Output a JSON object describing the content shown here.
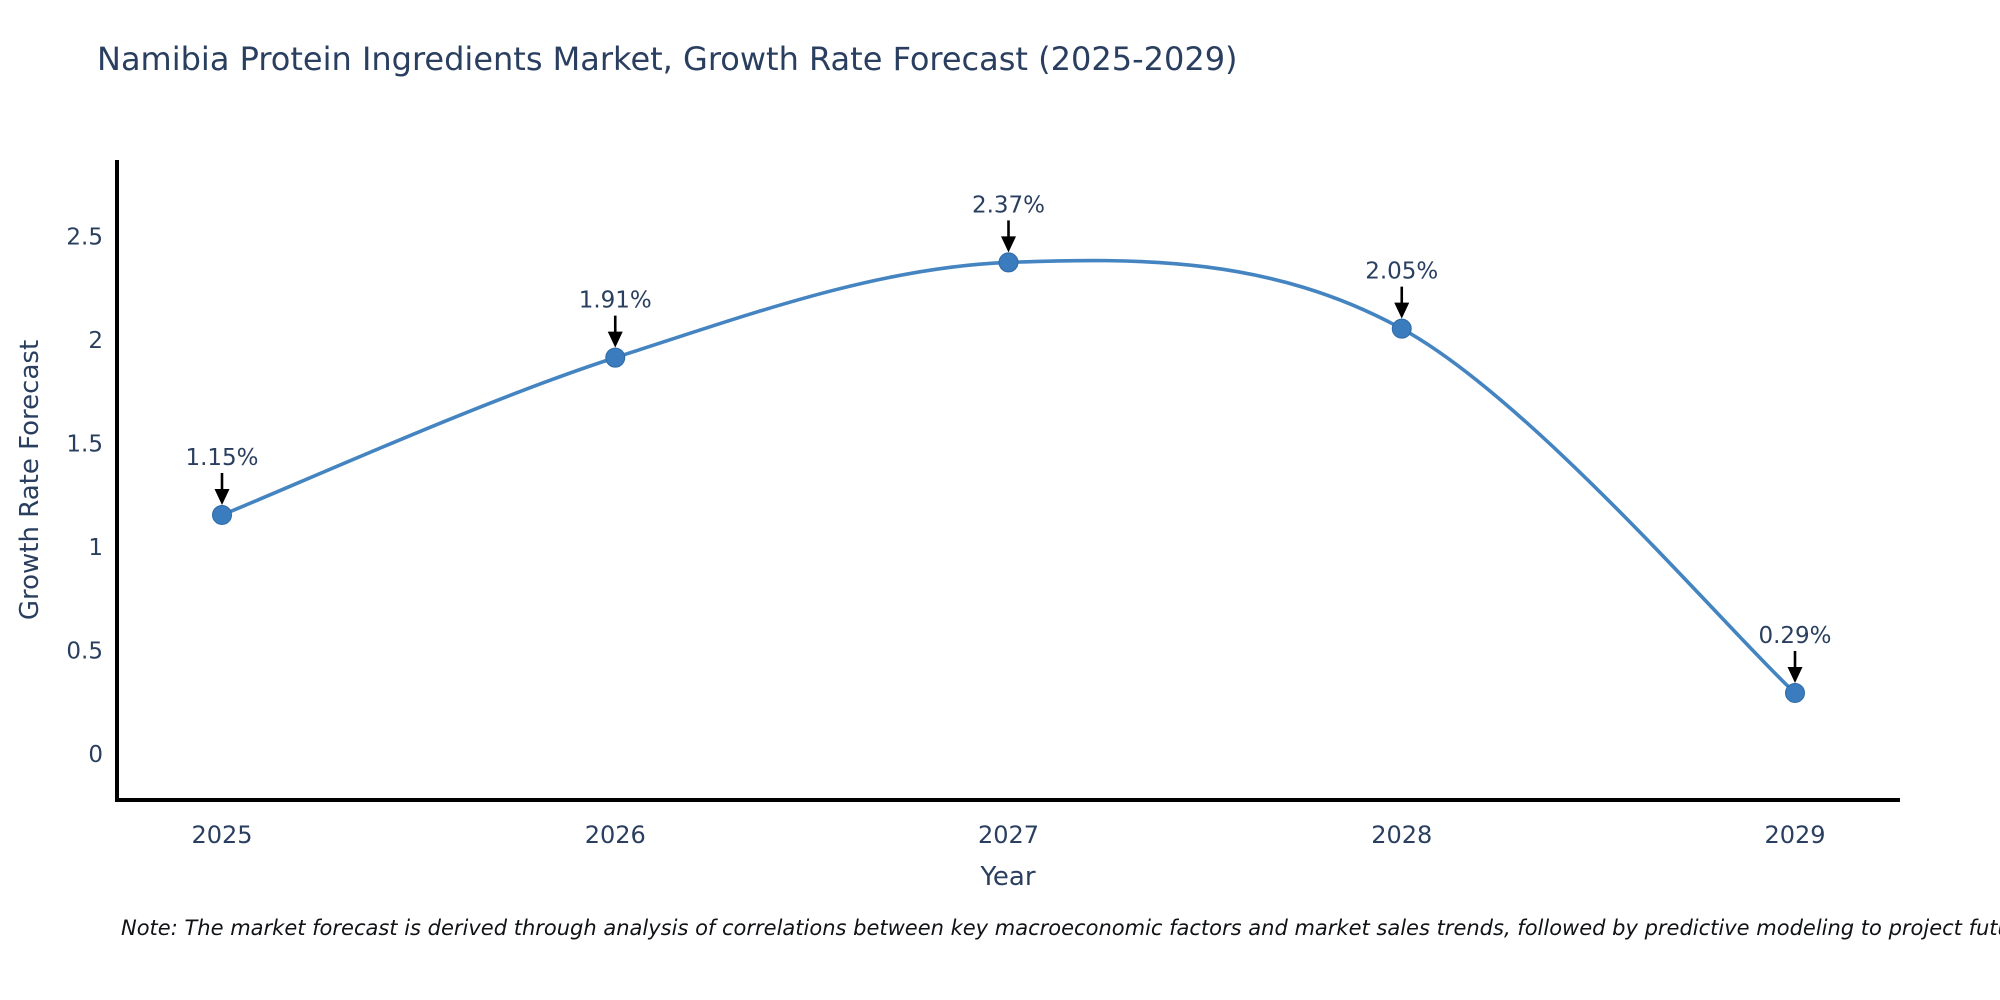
{
  "chart": {
    "note": "Note: The market forecast is derived through analysis of correlations between key macroeconomic factors and market sales trends, followed by predictive modeling to project future sales",
    "colors": {
      "title_text": "#2a3f5f",
      "axis_text": "#2a3f5f",
      "note_text": "#101216",
      "axis_line": "#000000",
      "series_line": "#4484c1",
      "marker_fill": "#3a7cbd",
      "marker_stroke": "#2e6aa6",
      "annotation_arrow": "#000000"
    }
  },
  "chart_data": {
    "type": "line",
    "title": "Namibia Protein Ingredients Market, Growth Rate Forecast (2025-2029)",
    "categories": [
      "2025",
      "2026",
      "2027",
      "2028",
      "2029"
    ],
    "values": [
      1.15,
      1.91,
      2.37,
      2.05,
      0.29
    ],
    "point_labels": [
      "1.15%",
      "1.91%",
      "2.37%",
      "2.05%",
      "0.29%"
    ],
    "xlabel": "Year",
    "ylabel": "Growth Rate Forecast",
    "yticks": [
      0,
      0.5,
      1,
      1.5,
      2,
      2.5
    ],
    "ytick_labels": [
      "0",
      "0.5",
      "1",
      "1.5",
      "2",
      "2.5"
    ],
    "ylim": [
      -0.23,
      2.87
    ],
    "grid": false,
    "legend": false,
    "line_shape": "spline",
    "annotation_style": "label-with-down-arrow"
  }
}
